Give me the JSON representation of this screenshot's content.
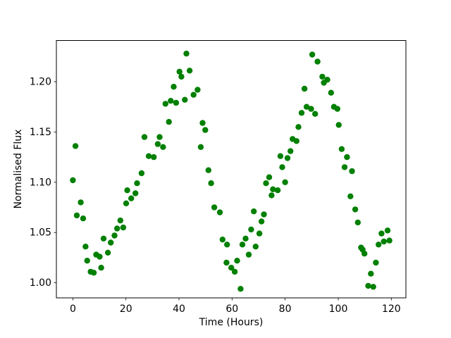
{
  "figure": {
    "background": "#ffffff",
    "frame_color": "#000000"
  },
  "chart_data": {
    "type": "scatter",
    "title": "",
    "xlabel": "Time (Hours)",
    "ylabel": "Normalised Flux",
    "xlim": [
      -6.2,
      125.5
    ],
    "ylim": [
      0.985,
      1.241
    ],
    "xticks": [
      0,
      20,
      40,
      60,
      80,
      100,
      120
    ],
    "yticks": [
      1.0,
      1.05,
      1.1,
      1.15,
      1.2
    ],
    "grid": false,
    "legend_position": "none",
    "series": [
      {
        "name": "normalised-flux-points",
        "color": "#008000",
        "marker": "circle",
        "marker_radius_px": 4.2,
        "points": [
          [
            0.0,
            1.102
          ],
          [
            1.0,
            1.136
          ],
          [
            1.5,
            1.067
          ],
          [
            3.0,
            1.08
          ],
          [
            3.9,
            1.064
          ],
          [
            4.8,
            1.036
          ],
          [
            5.4,
            1.022
          ],
          [
            6.7,
            1.011
          ],
          [
            7.9,
            1.01
          ],
          [
            8.8,
            1.028
          ],
          [
            10.1,
            1.026
          ],
          [
            10.7,
            1.015
          ],
          [
            11.6,
            1.044
          ],
          [
            13.2,
            1.03
          ],
          [
            14.3,
            1.04
          ],
          [
            15.7,
            1.047
          ],
          [
            16.7,
            1.054
          ],
          [
            17.9,
            1.062
          ],
          [
            19.0,
            1.055
          ],
          [
            20.1,
            1.079
          ],
          [
            20.5,
            1.092
          ],
          [
            22.0,
            1.084
          ],
          [
            23.6,
            1.089
          ],
          [
            24.2,
            1.099
          ],
          [
            25.9,
            1.109
          ],
          [
            27.0,
            1.145
          ],
          [
            28.6,
            1.126
          ],
          [
            30.5,
            1.125
          ],
          [
            32.0,
            1.138
          ],
          [
            32.7,
            1.145
          ],
          [
            34.0,
            1.135
          ],
          [
            34.9,
            1.178
          ],
          [
            36.2,
            1.16
          ],
          [
            36.9,
            1.181
          ],
          [
            38.0,
            1.195
          ],
          [
            38.9,
            1.179
          ],
          [
            40.2,
            1.21
          ],
          [
            40.9,
            1.205
          ],
          [
            42.2,
            1.182
          ],
          [
            42.8,
            1.228
          ],
          [
            44.0,
            1.211
          ],
          [
            45.5,
            1.187
          ],
          [
            47.0,
            1.192
          ],
          [
            48.2,
            1.135
          ],
          [
            48.9,
            1.159
          ],
          [
            49.9,
            1.152
          ],
          [
            51.1,
            1.112
          ],
          [
            52.1,
            1.099
          ],
          [
            53.3,
            1.075
          ],
          [
            55.4,
            1.07
          ],
          [
            56.4,
            1.043
          ],
          [
            57.9,
            1.02
          ],
          [
            58.1,
            1.038
          ],
          [
            59.7,
            1.015
          ],
          [
            61.0,
            1.011
          ],
          [
            61.9,
            1.022
          ],
          [
            63.2,
            0.994
          ],
          [
            63.9,
            1.038
          ],
          [
            65.1,
            1.044
          ],
          [
            66.3,
            1.028
          ],
          [
            67.2,
            1.053
          ],
          [
            68.2,
            1.071
          ],
          [
            68.9,
            1.036
          ],
          [
            70.3,
            1.049
          ],
          [
            71.1,
            1.061
          ],
          [
            72.0,
            1.068
          ],
          [
            72.8,
            1.099
          ],
          [
            74.0,
            1.105
          ],
          [
            74.9,
            1.087
          ],
          [
            75.4,
            1.093
          ],
          [
            77.2,
            1.092
          ],
          [
            78.2,
            1.126
          ],
          [
            78.9,
            1.115
          ],
          [
            80.0,
            1.1
          ],
          [
            80.9,
            1.124
          ],
          [
            82.0,
            1.131
          ],
          [
            82.8,
            1.143
          ],
          [
            84.3,
            1.141
          ],
          [
            85.0,
            1.155
          ],
          [
            86.2,
            1.169
          ],
          [
            87.3,
            1.193
          ],
          [
            88.1,
            1.175
          ],
          [
            89.8,
            1.173
          ],
          [
            90.2,
            1.227
          ],
          [
            91.3,
            1.168
          ],
          [
            92.2,
            1.22
          ],
          [
            94.0,
            1.205
          ],
          [
            94.6,
            1.199
          ],
          [
            95.9,
            1.202
          ],
          [
            97.3,
            1.189
          ],
          [
            98.4,
            1.175
          ],
          [
            99.7,
            1.173
          ],
          [
            100.2,
            1.157
          ],
          [
            101.3,
            1.133
          ],
          [
            102.4,
            1.115
          ],
          [
            103.3,
            1.125
          ],
          [
            104.6,
            1.086
          ],
          [
            105.2,
            1.111
          ],
          [
            106.4,
            1.073
          ],
          [
            107.4,
            1.06
          ],
          [
            108.6,
            1.035
          ],
          [
            109.2,
            1.033
          ],
          [
            109.9,
            1.029
          ],
          [
            111.3,
            0.997
          ],
          [
            112.3,
            1.009
          ],
          [
            113.2,
            0.996
          ],
          [
            114.2,
            1.02
          ],
          [
            115.2,
            1.038
          ],
          [
            116.3,
            1.049
          ],
          [
            117.2,
            1.041
          ],
          [
            118.6,
            1.052
          ],
          [
            119.3,
            1.042
          ]
        ]
      }
    ]
  }
}
